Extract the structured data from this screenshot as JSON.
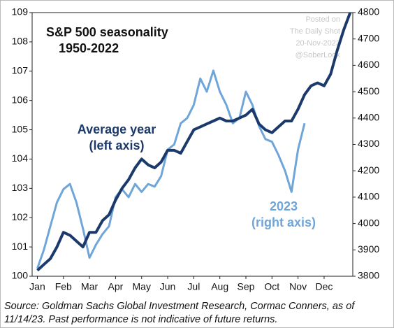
{
  "chart_data": {
    "type": "line",
    "title": [
      "S&P 500 seasonality",
      "1950-2022"
    ],
    "annotations": {
      "average": [
        "Average year",
        "(left axis)"
      ],
      "y2023": [
        "2023",
        "(right axis)"
      ],
      "watermark": [
        "Posted on",
        "The Daily Shot",
        "20-Nov-2023",
        "@SoberLook"
      ]
    },
    "source": [
      "Source: Goldman Sachs Global Investment Research, Cormac Conners,  as of",
      "11/14/23. Past performance is not indicative of future returns."
    ],
    "x": [
      0,
      0.25,
      0.5,
      0.75,
      1,
      1.25,
      1.5,
      1.75,
      2,
      2.25,
      2.5,
      2.75,
      3,
      3.25,
      3.5,
      3.75,
      4,
      4.25,
      4.5,
      4.75,
      5,
      5.25,
      5.5,
      5.75,
      6,
      6.25,
      6.5,
      6.75,
      7,
      7.25,
      7.5,
      7.75,
      8,
      8.25,
      8.5,
      8.75,
      9,
      9.25,
      9.5,
      9.75,
      10,
      10.25,
      10.5,
      10.75,
      11,
      11.25,
      11.5,
      11.75,
      12
    ],
    "series": [
      {
        "name": "Average year",
        "color": "#1b3a6b",
        "values": [
          100.2,
          100.4,
          100.6,
          101.0,
          101.5,
          101.4,
          101.2,
          101.0,
          101.5,
          101.5,
          101.9,
          102.1,
          102.6,
          103.0,
          103.3,
          103.7,
          104.0,
          103.8,
          103.7,
          103.9,
          104.3,
          104.3,
          104.2,
          104.6,
          105.0,
          105.1,
          105.2,
          105.3,
          105.4,
          105.3,
          105.3,
          105.4,
          105.5,
          105.7,
          105.2,
          105.0,
          104.9,
          105.1,
          105.3,
          105.3,
          105.7,
          106.2,
          106.5,
          106.6,
          106.5,
          106.9,
          107.7,
          108.4,
          109.0
        ]
      },
      {
        "name": "2023",
        "color": "#6fa5d8",
        "axis": "y2",
        "values": [
          3830,
          3900,
          3990,
          4080,
          4130,
          4150,
          4080,
          3980,
          3870,
          3920,
          3960,
          3990,
          4100,
          4130,
          4100,
          4150,
          4120,
          4150,
          4140,
          4180,
          4280,
          4300,
          4380,
          4400,
          4450,
          4550,
          4500,
          4580,
          4500,
          4450,
          4380,
          4400,
          4500,
          4450,
          4370,
          4320,
          4310,
          4260,
          4200,
          4120,
          4280,
          4380,
          null,
          null,
          null,
          null,
          null,
          null,
          null
        ]
      }
    ],
    "xlim": [
      -0.2,
      12.1
    ],
    "xticks": [
      {
        "value": 0,
        "label": "Jan"
      },
      {
        "value": 1,
        "label": "Feb"
      },
      {
        "value": 2,
        "label": "Mar"
      },
      {
        "value": 3,
        "label": "Apr"
      },
      {
        "value": 4,
        "label": "May"
      },
      {
        "value": 5,
        "label": "Jun"
      },
      {
        "value": 6,
        "label": "Jul"
      },
      {
        "value": 7,
        "label": "Aug"
      },
      {
        "value": 8,
        "label": "Sep"
      },
      {
        "value": 9,
        "label": "Oct"
      },
      {
        "value": 10,
        "label": "Nov"
      },
      {
        "value": 11,
        "label": "Dec"
      }
    ],
    "ylim": [
      100,
      109
    ],
    "yticks": [
      100,
      101,
      102,
      103,
      104,
      105,
      106,
      107,
      108,
      109
    ],
    "y2lim": [
      3800,
      4800
    ],
    "y2ticks": [
      3800,
      3900,
      4000,
      4100,
      4200,
      4300,
      4400,
      4500,
      4600,
      4700,
      4800
    ]
  }
}
